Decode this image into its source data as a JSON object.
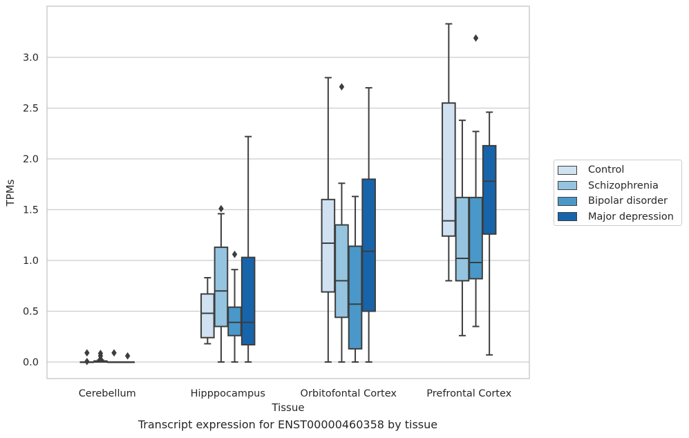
{
  "chart_data": {
    "type": "box",
    "xlabel": "Tissue",
    "ylabel": "TPMs",
    "ylim": [
      -0.16,
      3.5
    ],
    "yticks": [
      0.0,
      0.5,
      1.0,
      1.5,
      2.0,
      2.5,
      3.0
    ],
    "ytick_labels": [
      "0.0",
      "0.5",
      "1.0",
      "1.5",
      "2.0",
      "2.5",
      "3.0"
    ],
    "grid": "horizontal",
    "legend_position": "right",
    "categories": [
      "Cerebellum",
      "Hipppocampus",
      "Orbitofontal Cortex",
      "Prefrontal Cortex"
    ],
    "series": [
      {
        "name": "Control",
        "color": "#d0e1f2",
        "boxes": [
          {
            "q1": 0.0,
            "median": 0.0,
            "q3": 0.0,
            "whisker_low": 0.0,
            "whisker_high": 0.0,
            "outliers": [
              0.09,
              0.005
            ]
          },
          {
            "q1": 0.24,
            "median": 0.48,
            "q3": 0.67,
            "whisker_low": 0.18,
            "whisker_high": 0.83,
            "outliers": []
          },
          {
            "q1": 0.69,
            "median": 1.17,
            "q3": 1.6,
            "whisker_low": 0.0,
            "whisker_high": 2.8,
            "outliers": []
          },
          {
            "q1": 1.24,
            "median": 1.39,
            "q3": 2.55,
            "whisker_low": 0.8,
            "whisker_high": 3.33,
            "outliers": []
          }
        ]
      },
      {
        "name": "Schizophrenia",
        "color": "#94c4df",
        "boxes": [
          {
            "q1": 0.0,
            "median": 0.005,
            "q3": 0.01,
            "whisker_low": 0.0,
            "whisker_high": 0.02,
            "outliers": [
              0.085,
              0.06,
              0.03
            ]
          },
          {
            "q1": 0.35,
            "median": 0.7,
            "q3": 1.13,
            "whisker_low": 0.0,
            "whisker_high": 1.46,
            "outliers": [
              1.51
            ]
          },
          {
            "q1": 0.44,
            "median": 0.8,
            "q3": 1.35,
            "whisker_low": 0.0,
            "whisker_high": 1.76,
            "outliers": [
              2.71
            ]
          },
          {
            "q1": 0.8,
            "median": 1.02,
            "q3": 1.62,
            "whisker_low": 0.26,
            "whisker_high": 2.38,
            "outliers": []
          }
        ]
      },
      {
        "name": "Bipolar disorder",
        "color": "#4a98c9",
        "boxes": [
          {
            "q1": 0.0,
            "median": 0.0,
            "q3": 0.0,
            "whisker_low": 0.0,
            "whisker_high": 0.0,
            "outliers": [
              0.09
            ]
          },
          {
            "q1": 0.26,
            "median": 0.39,
            "q3": 0.54,
            "whisker_low": 0.0,
            "whisker_high": 0.91,
            "outliers": [
              1.06
            ]
          },
          {
            "q1": 0.13,
            "median": 0.57,
            "q3": 1.14,
            "whisker_low": 0.0,
            "whisker_high": 1.63,
            "outliers": []
          },
          {
            "q1": 0.82,
            "median": 0.98,
            "q3": 1.62,
            "whisker_low": 0.35,
            "whisker_high": 2.27,
            "outliers": [
              3.19
            ]
          }
        ]
      },
      {
        "name": "Major depression",
        "color": "#1764ab",
        "boxes": [
          {
            "q1": 0.0,
            "median": 0.0,
            "q3": 0.0,
            "whisker_low": 0.0,
            "whisker_high": 0.0,
            "outliers": [
              0.06
            ]
          },
          {
            "q1": 0.17,
            "median": 0.39,
            "q3": 1.03,
            "whisker_low": 0.0,
            "whisker_high": 2.22,
            "outliers": []
          },
          {
            "q1": 0.5,
            "median": 1.09,
            "q3": 1.8,
            "whisker_low": 0.0,
            "whisker_high": 2.7,
            "outliers": []
          },
          {
            "q1": 1.26,
            "median": 1.78,
            "q3": 2.13,
            "whisker_low": 0.07,
            "whisker_high": 2.46,
            "outliers": []
          }
        ]
      }
    ]
  },
  "caption": "Transcript expression for ENST00000460358 by tissue"
}
